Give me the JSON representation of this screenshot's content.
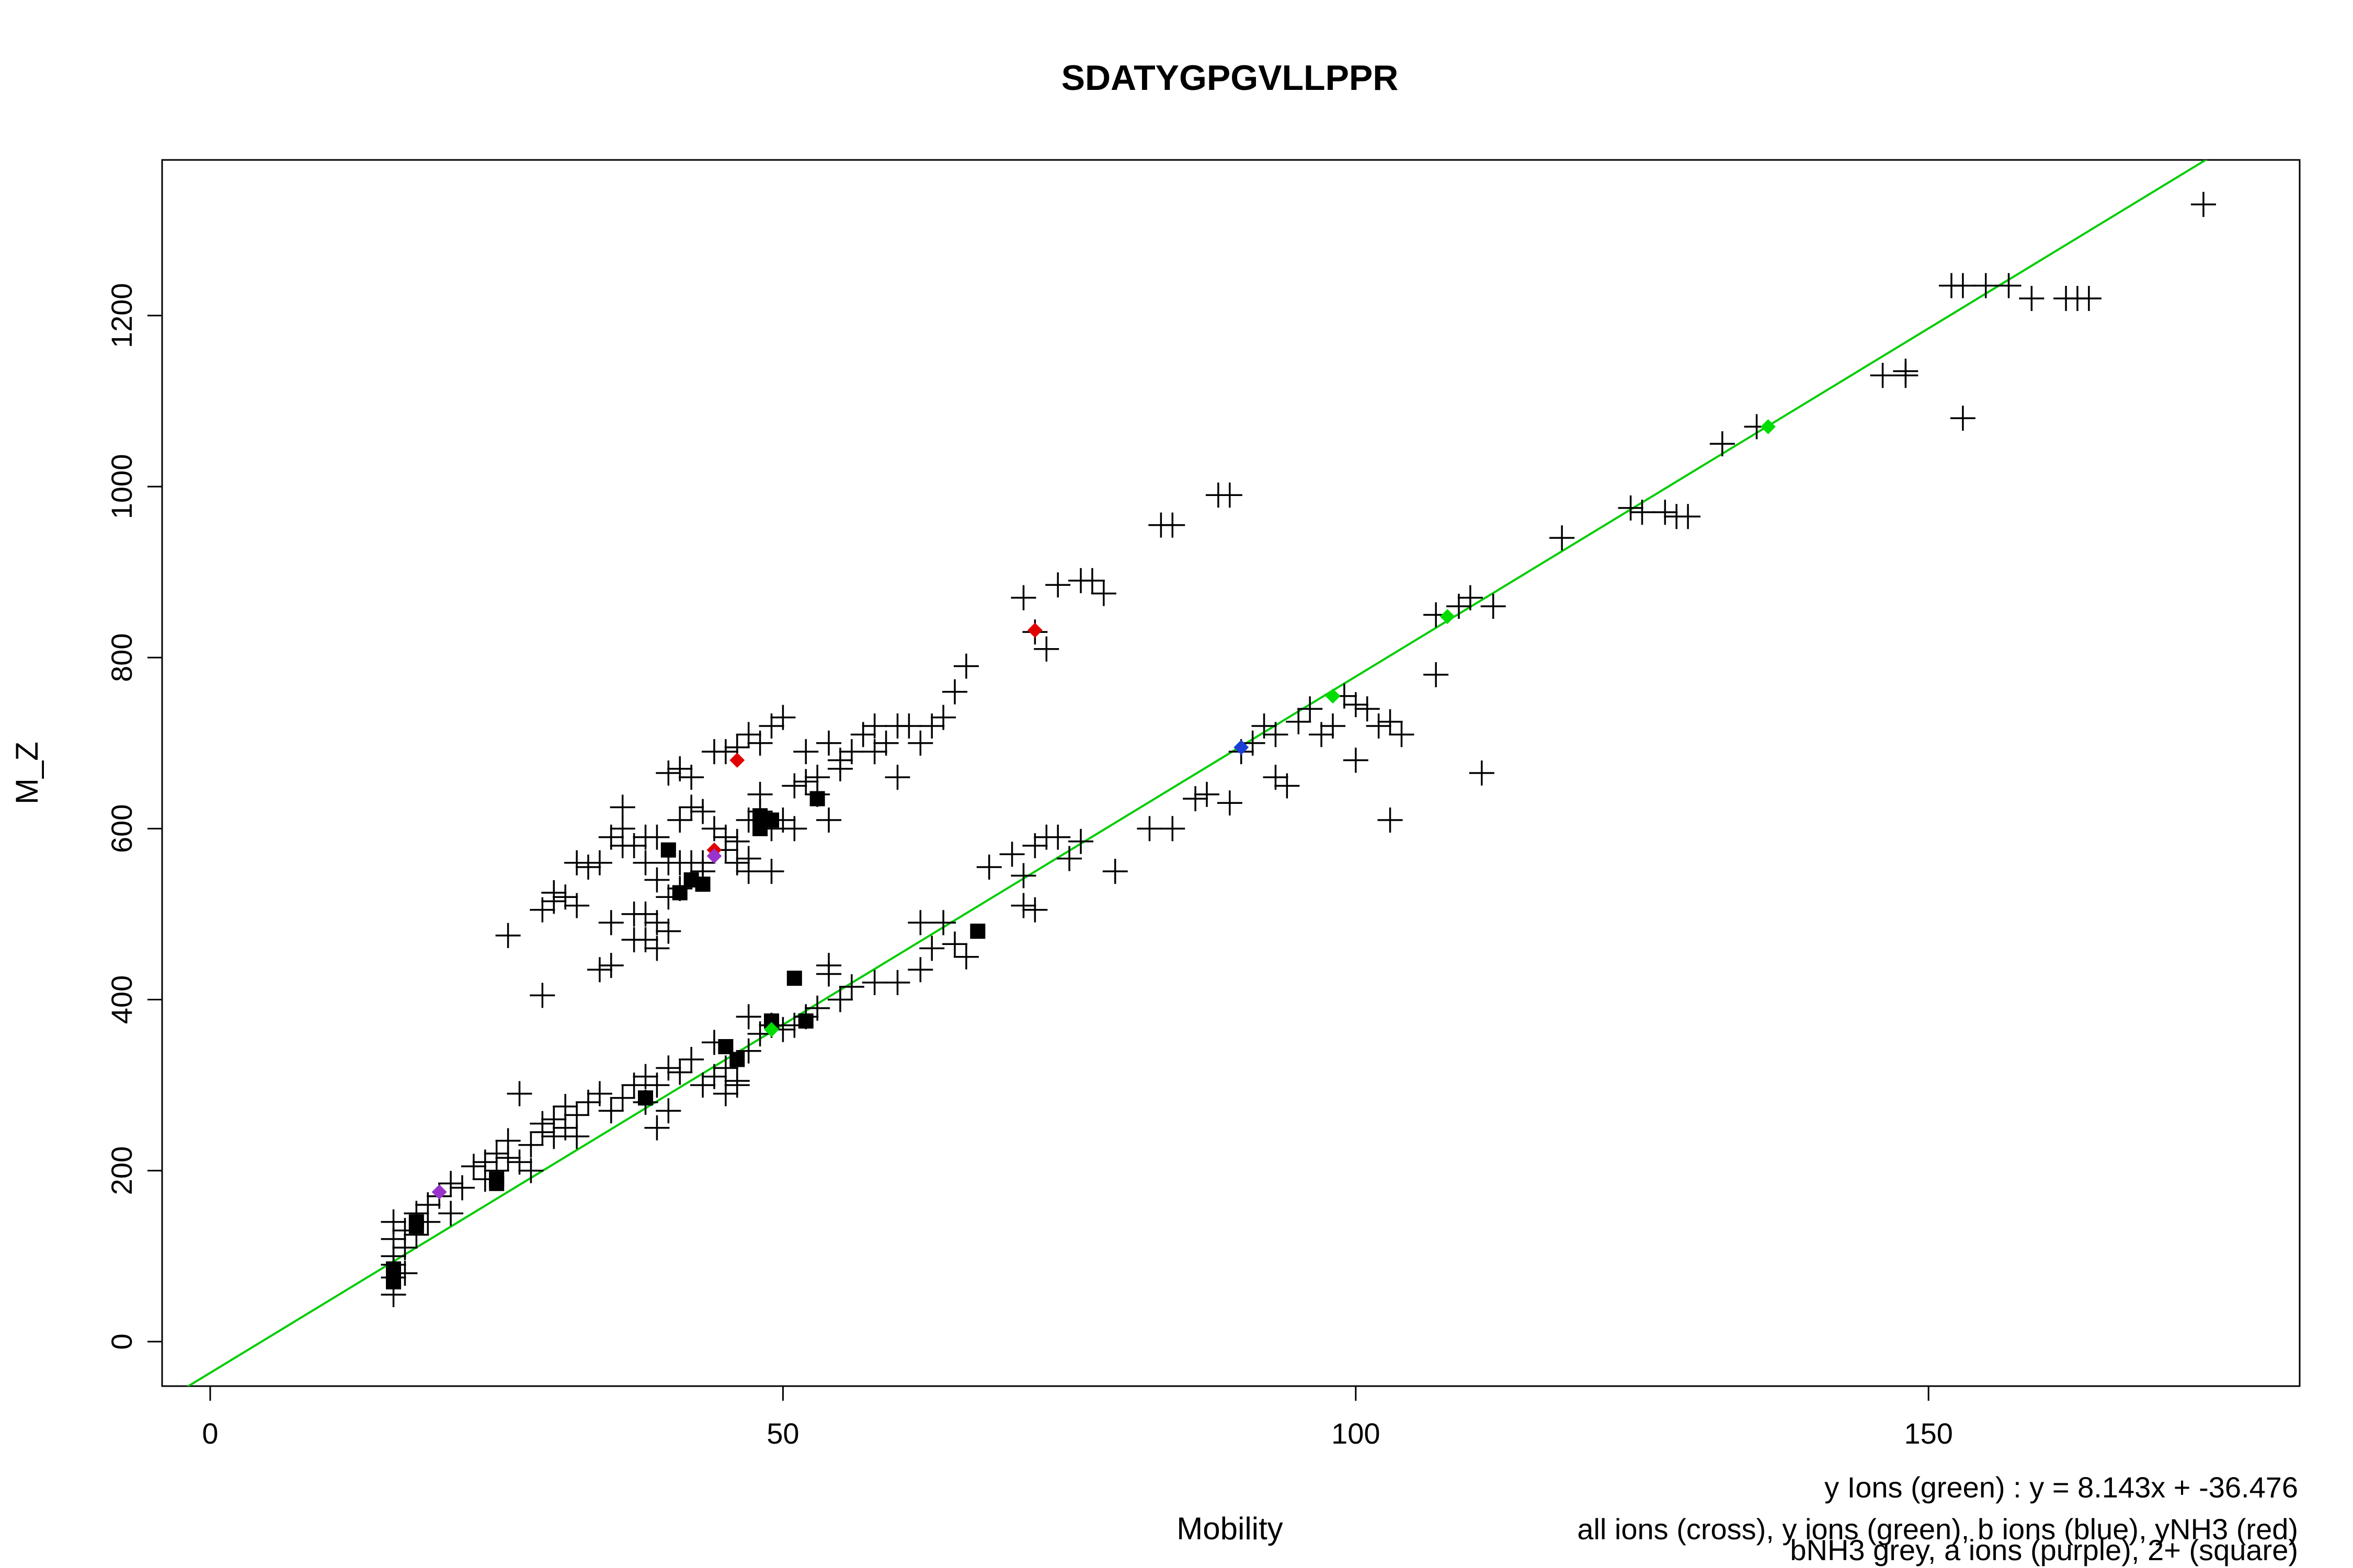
{
  "chart_data": {
    "type": "scatter",
    "title": "SDATYGPGVLLPPR",
    "xlabel": "Mobility",
    "ylabel": "M_Z",
    "xlim": [
      -4.2,
      182.4
    ],
    "ylim": [
      -52.0,
      1382.0
    ],
    "xticks": [
      0,
      50,
      100,
      150
    ],
    "yticks": [
      0,
      200,
      400,
      600,
      800,
      1000,
      1200
    ],
    "grid": false,
    "legend_lines": [
      "y Ions (green) : y = 8.143x + -36.476",
      "all ions (cross), y ions (green), b ions (blue), yNH3 (red)",
      "bNH3 grey, a ions (purple), 2+ (square)"
    ],
    "colors": {
      "all": "#000000",
      "y": "#00dd00",
      "b": "#1a3fd6",
      "yNH3": "#e00000",
      "bNH3": "#808080",
      "a": "#9933cc",
      "fit": "#00cc00"
    },
    "fit_line": {
      "slope": 8.143,
      "intercept": -36.476
    },
    "series": [
      {
        "name": "all ions (cross)",
        "marker": "cross",
        "points": [
          [
            16,
            55
          ],
          [
            16,
            75
          ],
          [
            16,
            90
          ],
          [
            16,
            100
          ],
          [
            16,
            120
          ],
          [
            16,
            140
          ],
          [
            17,
            80
          ],
          [
            17,
            110
          ],
          [
            17,
            130
          ],
          [
            18,
            150
          ],
          [
            18,
            125
          ],
          [
            19,
            160
          ],
          [
            19,
            140
          ],
          [
            20,
            170
          ],
          [
            21,
            150
          ],
          [
            21,
            185
          ],
          [
            22,
            180
          ],
          [
            23,
            205
          ],
          [
            24,
            210
          ],
          [
            24,
            190
          ],
          [
            25,
            220
          ],
          [
            25,
            200
          ],
          [
            26,
            215
          ],
          [
            26,
            235
          ],
          [
            27,
            210
          ],
          [
            27,
            290
          ],
          [
            28,
            200
          ],
          [
            28,
            230
          ],
          [
            29,
            245
          ],
          [
            29,
            255
          ],
          [
            30,
            240
          ],
          [
            30,
            260
          ],
          [
            31,
            250
          ],
          [
            31,
            275
          ],
          [
            32,
            265
          ],
          [
            32,
            240
          ],
          [
            33,
            280
          ],
          [
            34,
            290
          ],
          [
            35,
            270
          ],
          [
            36,
            285
          ],
          [
            37,
            300
          ],
          [
            38,
            280
          ],
          [
            38,
            310
          ],
          [
            39,
            250
          ],
          [
            39,
            300
          ],
          [
            40,
            320
          ],
          [
            40,
            270
          ],
          [
            41,
            315
          ],
          [
            42,
            330
          ],
          [
            43,
            300
          ],
          [
            44,
            350
          ],
          [
            44,
            310
          ],
          [
            45,
            320
          ],
          [
            45,
            290
          ],
          [
            46,
            305
          ],
          [
            46,
            300
          ],
          [
            47,
            380
          ],
          [
            47,
            340
          ],
          [
            48,
            360
          ],
          [
            49,
            370
          ],
          [
            50,
            365
          ],
          [
            51,
            370
          ],
          [
            52,
            380
          ],
          [
            53,
            390
          ],
          [
            54,
            430
          ],
          [
            54,
            440
          ],
          [
            55,
            400
          ],
          [
            56,
            415
          ],
          [
            58,
            420
          ],
          [
            60,
            420
          ],
          [
            62,
            435
          ],
          [
            62,
            490
          ],
          [
            63,
            460
          ],
          [
            64,
            490
          ],
          [
            65,
            465
          ],
          [
            66,
            450
          ],
          [
            68,
            555
          ],
          [
            70,
            570
          ],
          [
            71,
            510
          ],
          [
            71,
            545
          ],
          [
            72,
            505
          ],
          [
            72,
            580
          ],
          [
            73,
            590
          ],
          [
            74,
            590
          ],
          [
            75,
            565
          ],
          [
            76,
            585
          ],
          [
            79,
            550
          ],
          [
            82,
            600
          ],
          [
            84,
            600
          ],
          [
            86,
            635
          ],
          [
            87,
            640
          ],
          [
            89,
            630
          ],
          [
            90,
            690
          ],
          [
            91,
            700
          ],
          [
            92,
            720
          ],
          [
            93,
            710
          ],
          [
            93,
            660
          ],
          [
            94,
            650
          ],
          [
            95,
            725
          ],
          [
            96,
            740
          ],
          [
            97,
            710
          ],
          [
            98,
            720
          ],
          [
            99,
            755
          ],
          [
            100,
            680
          ],
          [
            100,
            745
          ],
          [
            101,
            740
          ],
          [
            102,
            720
          ],
          [
            103,
            725
          ],
          [
            104,
            710
          ],
          [
            103,
            610
          ],
          [
            107,
            780
          ],
          [
            107,
            850
          ],
          [
            109,
            860
          ],
          [
            110,
            870
          ],
          [
            111,
            665
          ],
          [
            112,
            860
          ],
          [
            118,
            940
          ],
          [
            124,
            975
          ],
          [
            125,
            970
          ],
          [
            127,
            970
          ],
          [
            128,
            965
          ],
          [
            129,
            965
          ],
          [
            132,
            1050
          ],
          [
            135,
            1070
          ],
          [
            146,
            1130
          ],
          [
            148,
            1130
          ],
          [
            148,
            1135
          ],
          [
            152,
            1235
          ],
          [
            153,
            1235
          ],
          [
            153,
            1080
          ],
          [
            155,
            1235
          ],
          [
            157,
            1235
          ],
          [
            159,
            1220
          ],
          [
            162,
            1220
          ],
          [
            163,
            1220
          ],
          [
            164,
            1220
          ],
          [
            174,
            1330
          ],
          [
            26,
            475
          ],
          [
            29,
            405
          ],
          [
            29,
            505
          ],
          [
            30,
            515
          ],
          [
            30,
            525
          ],
          [
            31,
            520
          ],
          [
            32,
            510
          ],
          [
            32,
            560
          ],
          [
            33,
            555
          ],
          [
            34,
            560
          ],
          [
            34,
            435
          ],
          [
            35,
            440
          ],
          [
            35,
            490
          ],
          [
            35,
            590
          ],
          [
            36,
            580
          ],
          [
            36,
            600
          ],
          [
            36,
            625
          ],
          [
            37,
            500
          ],
          [
            37,
            470
          ],
          [
            37,
            580
          ],
          [
            38,
            500
          ],
          [
            38,
            470
          ],
          [
            38,
            560
          ],
          [
            38,
            590
          ],
          [
            39,
            540
          ],
          [
            39,
            590
          ],
          [
            39,
            490
          ],
          [
            39,
            460
          ],
          [
            40,
            480
          ],
          [
            40,
            520
          ],
          [
            40,
            560
          ],
          [
            40,
            665
          ],
          [
            41,
            530
          ],
          [
            41,
            560
          ],
          [
            41,
            610
          ],
          [
            41,
            670
          ],
          [
            42,
            560
          ],
          [
            42,
            625
          ],
          [
            42,
            660
          ],
          [
            43,
            560
          ],
          [
            43,
            620
          ],
          [
            43,
            550
          ],
          [
            44,
            600
          ],
          [
            44,
            690
          ],
          [
            45,
            590
          ],
          [
            45,
            575
          ],
          [
            45,
            690
          ],
          [
            46,
            560
          ],
          [
            46,
            585
          ],
          [
            46,
            695
          ],
          [
            47,
            550
          ],
          [
            47,
            610
          ],
          [
            47,
            565
          ],
          [
            47,
            710
          ],
          [
            48,
            620
          ],
          [
            48,
            640
          ],
          [
            48,
            700
          ],
          [
            49,
            550
          ],
          [
            49,
            600
          ],
          [
            49,
            720
          ],
          [
            50,
            610
          ],
          [
            50,
            730
          ],
          [
            51,
            600
          ],
          [
            51,
            650
          ],
          [
            52,
            655
          ],
          [
            52,
            690
          ],
          [
            53,
            660
          ],
          [
            53,
            640
          ],
          [
            54,
            610
          ],
          [
            54,
            700
          ],
          [
            55,
            680
          ],
          [
            55,
            670
          ],
          [
            56,
            690
          ],
          [
            57,
            710
          ],
          [
            58,
            690
          ],
          [
            58,
            720
          ],
          [
            59,
            700
          ],
          [
            60,
            720
          ],
          [
            60,
            660
          ],
          [
            61,
            720
          ],
          [
            62,
            700
          ],
          [
            63,
            720
          ],
          [
            64,
            730
          ],
          [
            65,
            760
          ],
          [
            66,
            790
          ],
          [
            71,
            870
          ],
          [
            72,
            830
          ],
          [
            73,
            810
          ],
          [
            74,
            885
          ],
          [
            76,
            890
          ],
          [
            77,
            890
          ],
          [
            78,
            875
          ],
          [
            83,
            955
          ],
          [
            84,
            955
          ],
          [
            88,
            990
          ],
          [
            89,
            990
          ]
        ]
      },
      {
        "name": "2+ (square)",
        "marker": "square",
        "points": [
          [
            16,
            70
          ],
          [
            16,
            85
          ],
          [
            18,
            135
          ],
          [
            18,
            140
          ],
          [
            25,
            185
          ],
          [
            25,
            190
          ],
          [
            38,
            285
          ],
          [
            45,
            345
          ],
          [
            46,
            330
          ],
          [
            49,
            375
          ],
          [
            51,
            425
          ],
          [
            52,
            375
          ],
          [
            53,
            635
          ],
          [
            40,
            575
          ],
          [
            41,
            525
          ],
          [
            42,
            540
          ],
          [
            43,
            535
          ],
          [
            48,
            600
          ],
          [
            48,
            615
          ],
          [
            49,
            610
          ],
          [
            67,
            480
          ]
        ]
      },
      {
        "name": "y ions (green)",
        "marker": "diamond",
        "points": [
          [
            20,
            175
          ],
          [
            49,
            365
          ],
          [
            98,
            755
          ],
          [
            108,
            848
          ],
          [
            136,
            1070
          ]
        ]
      },
      {
        "name": "b ions (blue)",
        "marker": "diamond",
        "points": [
          [
            90,
            695
          ]
        ]
      },
      {
        "name": "yNH3 (red)",
        "marker": "diamond",
        "points": [
          [
            44,
            575
          ],
          [
            46,
            680
          ],
          [
            72,
            832
          ]
        ]
      },
      {
        "name": "a ions (purple)",
        "marker": "diamond",
        "points": [
          [
            20,
            175
          ],
          [
            44,
            568
          ]
        ]
      }
    ]
  }
}
